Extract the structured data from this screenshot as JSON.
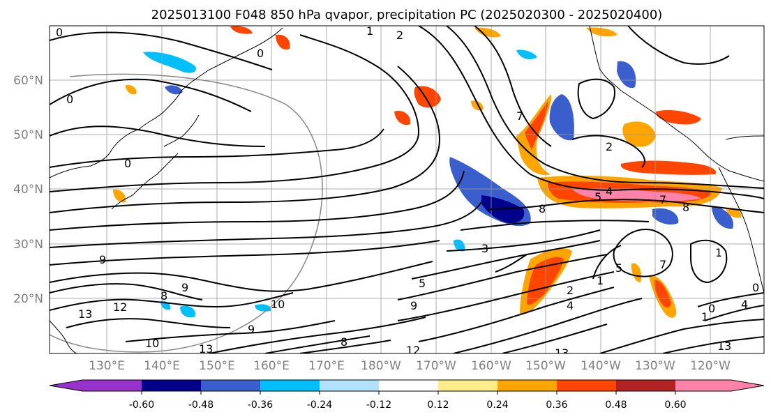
{
  "title": "2025013100 F048 850 hPa qvapor, precipitation PC (2025020300 - 2025020400)",
  "lat_labels": [
    "60°N",
    "50°N",
    "40°N",
    "30°N",
    "20°N"
  ],
  "lon_labels": [
    "130°E",
    "140°E",
    "150°E",
    "160°E",
    "170°E",
    "180°W",
    "170°W",
    "160°W",
    "150°W",
    "140°W",
    "130°W",
    "120°W"
  ],
  "colorbar": {
    "colors": [
      "#9932CC",
      "#00008B",
      "#3A5FCD",
      "#00BFFF",
      "#B0E2FF",
      "#FFFFFF",
      "#FFFFFF",
      "#FFEC8B",
      "#FFA500",
      "#FF4500",
      "#B22222",
      "#FF82AB"
    ],
    "tick_labels": [
      "-0.60",
      "-0.48",
      "-0.36",
      "-0.24",
      "-0.12",
      "0.12",
      "0.24",
      "0.36",
      "0.48",
      "0.60"
    ]
  },
  "contour_labels": [
    "0",
    "0",
    "0",
    "0",
    "1",
    "2",
    "2",
    "7",
    "5",
    "4",
    "7",
    "8",
    "8",
    "1",
    "5",
    "1",
    "9",
    "8",
    "9",
    "10",
    "13",
    "12",
    "9",
    "10",
    "13",
    "13",
    "12",
    "9",
    "8",
    "5",
    "7",
    "4",
    "0",
    "4",
    "1",
    "0",
    "13",
    "2",
    "3"
  ],
  "colors": {
    "contour": "#000000",
    "gridline": "#999999",
    "coast": "#000000",
    "frame": "#000000"
  }
}
